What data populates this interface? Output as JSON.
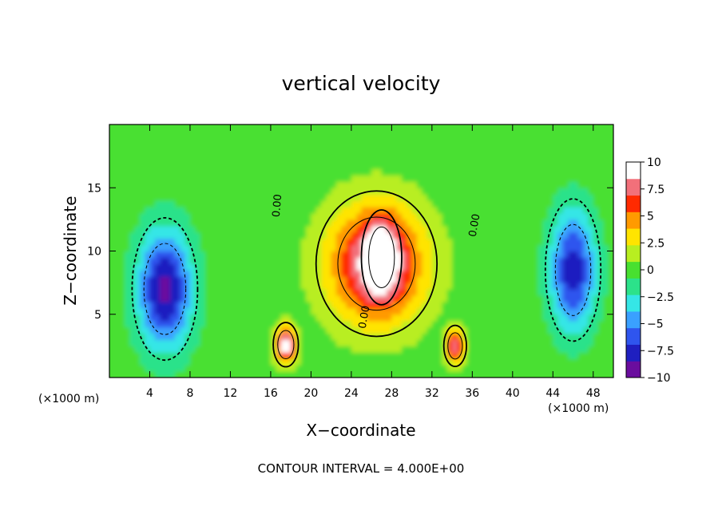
{
  "chart_data": {
    "type": "heatmap",
    "title": "vertical velocity",
    "xlabel": "X−coordinate",
    "ylabel": "Z−coordinate",
    "x_unit": "(×1000 m)",
    "z_unit": "(×1000 m)",
    "xlim": [
      0,
      50
    ],
    "ylim": [
      0,
      20
    ],
    "x_ticks": [
      4,
      8,
      12,
      16,
      20,
      24,
      28,
      32,
      36,
      40,
      44,
      48
    ],
    "y_ticks": [
      5,
      10,
      15
    ],
    "colorbar": {
      "min": -10,
      "max": 10,
      "tick_values": [
        10,
        7.5,
        5,
        2.5,
        0,
        -2.5,
        -5,
        -7.5,
        -10
      ],
      "tick_labels": [
        "10",
        "7.5",
        "5",
        "2.5",
        "0",
        "−2.5",
        "−5",
        "−7.5",
        "−10"
      ],
      "colors": [
        "#6a0d9e",
        "#1f1fc0",
        "#2f55ee",
        "#3aa0ff",
        "#35e6e6",
        "#2ce28a",
        "#48e030",
        "#b8ee20",
        "#ffe400",
        "#ff9a00",
        "#ff2a00",
        "#f2707a",
        "#ffffff"
      ]
    },
    "contour_labels": [
      "0.00",
      "0.00",
      "0.00"
    ],
    "contour_interval_text": "CONTOUR INTERVAL = 4.000E+00",
    "features": [
      {
        "name": "main updraft",
        "x": 26.5,
        "z": 9,
        "sx": 4.8,
        "sz": 4.6,
        "w": 9
      },
      {
        "name": "updraft core",
        "x": 27,
        "z": 9.5,
        "sx": 1.6,
        "sz": 3,
        "w": 5
      },
      {
        "name": "left cell",
        "x": 17.5,
        "z": 2.6,
        "sx": 1.0,
        "sz": 1.4,
        "w": 10
      },
      {
        "name": "right cell",
        "x": 34.3,
        "z": 2.5,
        "sx": 0.9,
        "sz": 1.3,
        "w": 8
      },
      {
        "name": "left downdraft",
        "x": 5.5,
        "z": 7,
        "sx": 2.6,
        "sz": 4.5,
        "w": -9
      },
      {
        "name": "right downdraft",
        "x": 46,
        "z": 8.5,
        "sx": 2.2,
        "sz": 4.5,
        "w": -8
      }
    ]
  }
}
